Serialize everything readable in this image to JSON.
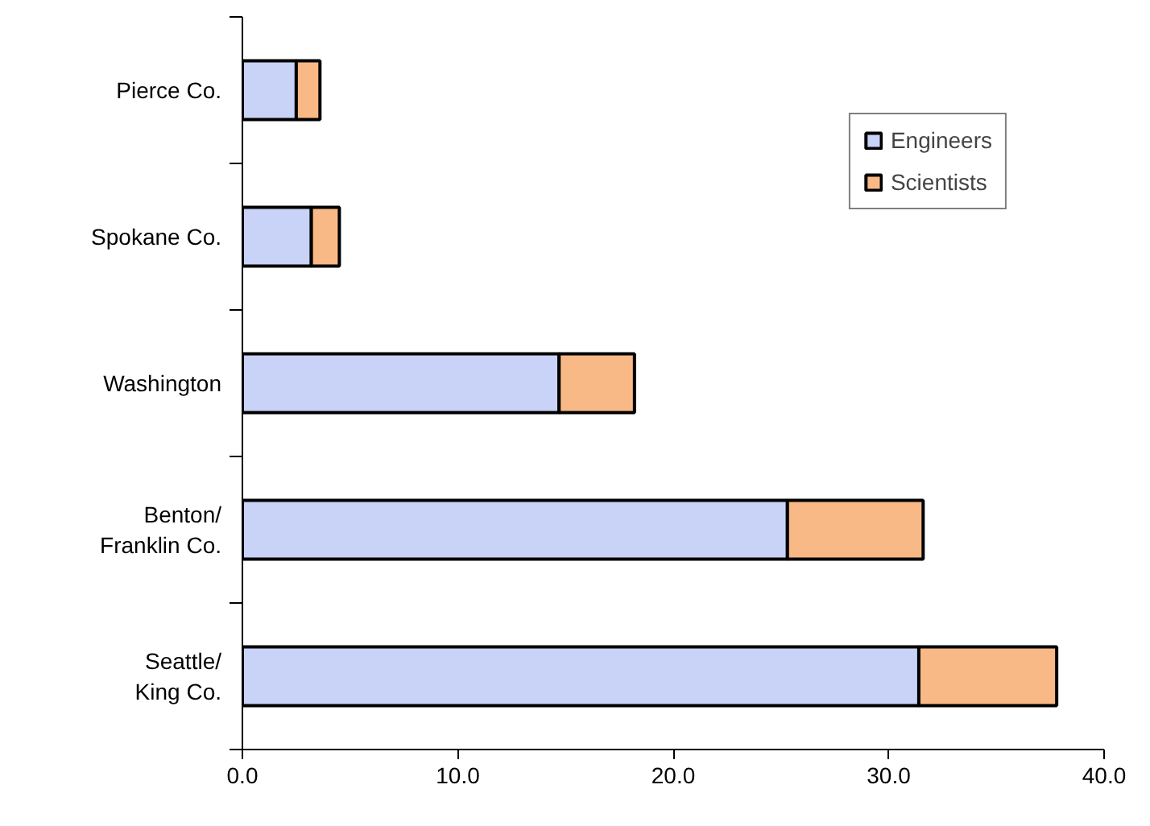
{
  "chart_data": {
    "type": "bar",
    "orientation": "horizontal",
    "stacked": true,
    "categories": [
      "Pierce Co.",
      "Spokane Co.",
      "Washington",
      "Benton/\nFranklin Co.",
      "Seattle/\nKing Co."
    ],
    "series": [
      {
        "name": "Engineers",
        "color": "#c9d2f7",
        "values": [
          2.5,
          3.2,
          14.7,
          25.3,
          31.4
        ]
      },
      {
        "name": "Scientists",
        "color": "#f9b987",
        "values": [
          1.1,
          1.3,
          3.5,
          6.3,
          6.4
        ]
      }
    ],
    "xlim": [
      0,
      40
    ],
    "xticks": [
      {
        "value": 0,
        "label": "0.0"
      },
      {
        "value": 10,
        "label": "10.0"
      },
      {
        "value": 20,
        "label": "20.0"
      },
      {
        "value": 30,
        "label": "30.0"
      },
      {
        "value": 40,
        "label": "40.0"
      }
    ],
    "grid": false,
    "legend": "top right"
  }
}
